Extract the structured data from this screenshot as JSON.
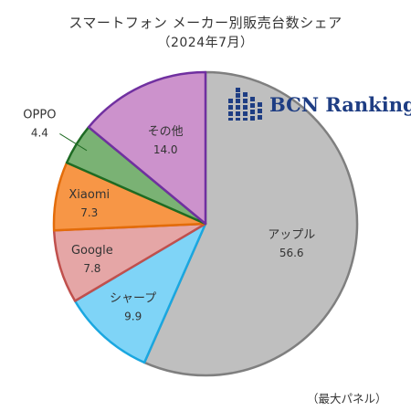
{
  "title": "スマートフォン メーカー別販売台数シェア",
  "subtitle": "（2024年7月）",
  "logo_text": "BCN Ranking",
  "footnote": "（最大パネル）",
  "colors": {
    "logo_blue": "#1e3d83"
  },
  "chart_data": {
    "type": "pie",
    "title": "スマートフォン メーカー別販売台数シェア",
    "subtitle": "（2024年7月）",
    "slices": [
      {
        "label": "アップル",
        "value": 56.6,
        "value_label": "56.6",
        "fill": "#bfbfbf",
        "stroke": "#7f7f7f"
      },
      {
        "label": "シャープ",
        "value": 9.9,
        "value_label": "9.9",
        "fill": "#7fd4f7",
        "stroke": "#1aa7e0"
      },
      {
        "label": "Google",
        "value": 7.8,
        "value_label": "7.8",
        "fill": "#e5a6a6",
        "stroke": "#c0504d"
      },
      {
        "label": "Xiaomi",
        "value": 7.3,
        "value_label": "7.3",
        "fill": "#f79646",
        "stroke": "#e36c0a"
      },
      {
        "label": "OPPO",
        "value": 4.4,
        "value_label": "4.4",
        "fill": "#7ab274",
        "stroke": "#1e6b23"
      },
      {
        "label": "その他",
        "value": 14.0,
        "value_label": "14.0",
        "fill": "#cc92cc",
        "stroke": "#7030a0"
      }
    ]
  }
}
